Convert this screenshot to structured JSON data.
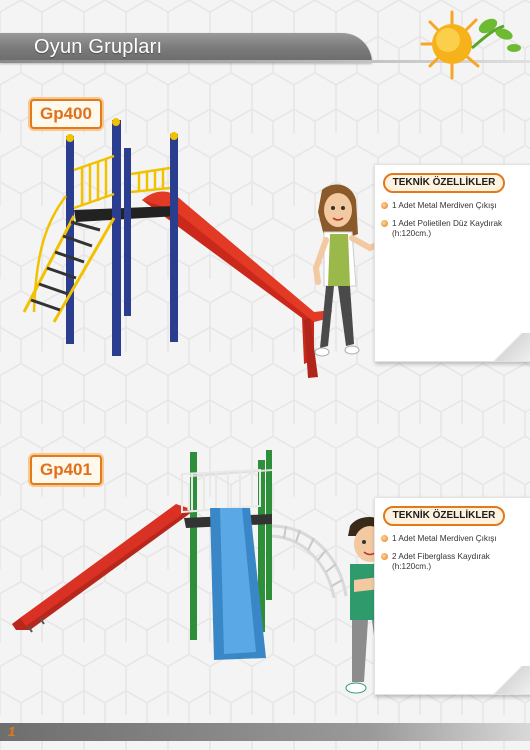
{
  "header": {
    "title": "Oyun Grupları"
  },
  "products": [
    {
      "code": "Gp400",
      "spec_title": "TEKNİK ÖZELLİKLER",
      "specs": [
        "1 Adet Metal Merdiven Çıkışı",
        "1 Adet Polietilen Düz Kaydırak (h:120cm.)"
      ]
    },
    {
      "code": "Gp401",
      "spec_title": "TEKNİK ÖZELLİKLER",
      "specs": [
        "1 Adet Metal Merdiven Çıkışı",
        "2 Adet Fiberglass Kaydırak (h:120cm.)"
      ]
    }
  ],
  "footer": {
    "page_number": "1"
  },
  "colors": {
    "accent": "#e07a1c",
    "header_gray": "#7d7d7d"
  },
  "icons": [
    "sun-logo-icon",
    "bullet-icon"
  ]
}
